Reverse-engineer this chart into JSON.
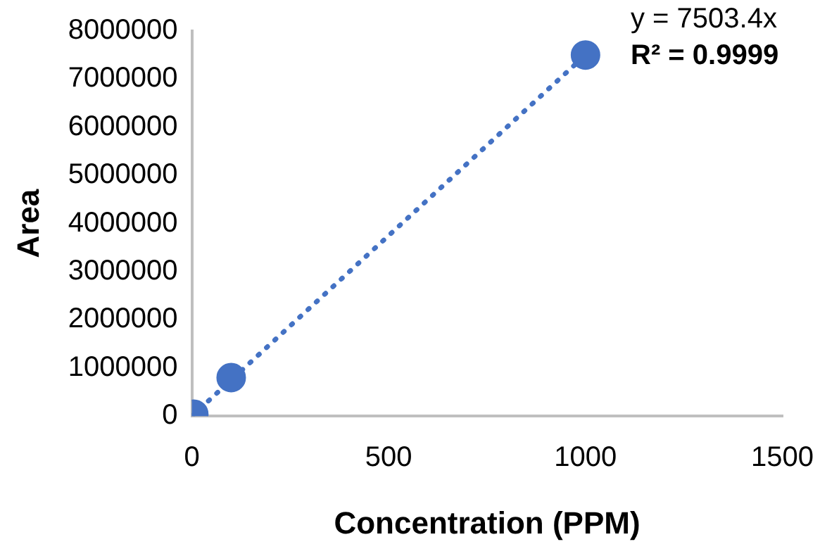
{
  "chart_data": {
    "type": "scatter",
    "xlabel": "Concentration (PPM)",
    "ylabel": "Area",
    "xlim": [
      0,
      1500
    ],
    "xticks": [
      0,
      500,
      1000,
      1500
    ],
    "ylim": [
      0,
      8000000
    ],
    "yticks": [
      0,
      1000000,
      2000000,
      3000000,
      4000000,
      5000000,
      6000000,
      7000000,
      8000000
    ],
    "grid": false,
    "legend": false,
    "marker": "circle",
    "series": [
      {
        "type": "scatter",
        "color": "#4472c4",
        "x": [
          5,
          100,
          1000
        ],
        "values": [
          40000,
          800000,
          7500000
        ]
      },
      {
        "type": "line",
        "color": "#4472c4",
        "line_style": "dotted",
        "marker": "none",
        "x": [
          0,
          1000
        ],
        "values": [
          0,
          7500000
        ]
      }
    ],
    "annotations": [
      "y = 7503.4x",
      "R² = 0.9999"
    ]
  }
}
